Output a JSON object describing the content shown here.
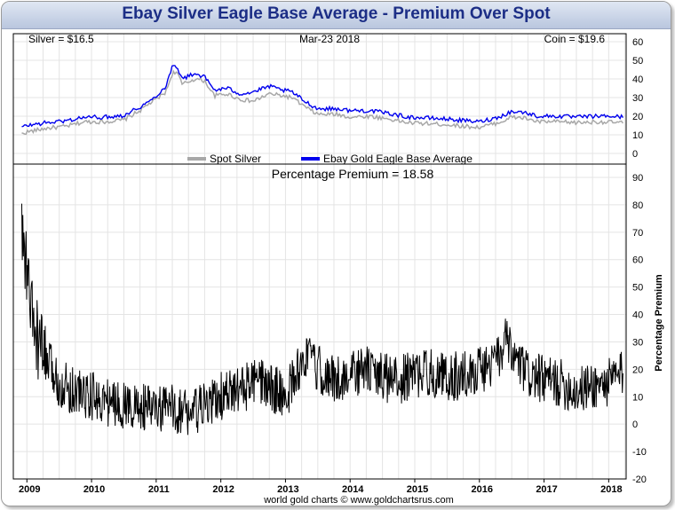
{
  "title": "Ebay Silver Eagle Base Average - Premium Over Spot",
  "footer": "world gold charts © www.goldchartsrus.com",
  "colors": {
    "title": "#1c2e86",
    "spot_silver": "#a8a8a8",
    "ebay_average": "#0000ee",
    "premium": "#000000",
    "grid": "#e4e4e4"
  },
  "chart_data": [
    {
      "type": "line",
      "header": {
        "silver": "Silver = $16.5",
        "date": "Mar-23  2018",
        "coin": "Coin = $19.6"
      },
      "legend": {
        "placement": "bottom-center",
        "items": [
          "Spot Silver",
          "Ebay Gold Eagle Base Average"
        ]
      },
      "x": [
        2008.92,
        2009.0,
        2009.3,
        2009.6,
        2009.9,
        2010.2,
        2010.5,
        2010.75,
        2010.9,
        2011.0,
        2011.15,
        2011.25,
        2011.32,
        2011.4,
        2011.6,
        2011.75,
        2011.9,
        2012.1,
        2012.3,
        2012.5,
        2012.75,
        2012.95,
        2013.1,
        2013.3,
        2013.5,
        2013.8,
        2014.0,
        2014.3,
        2014.6,
        2014.9,
        2015.2,
        2015.5,
        2015.8,
        2016.0,
        2016.3,
        2016.5,
        2016.7,
        2016.9,
        2017.2,
        2017.5,
        2017.8,
        2018.0,
        2018.22
      ],
      "series": [
        {
          "name": "Spot Silver",
          "values": [
            10.5,
            11.5,
            13.5,
            14.5,
            17,
            17,
            18,
            23,
            27,
            29,
            33,
            43,
            44,
            37,
            40,
            39,
            31,
            32,
            29,
            28,
            32,
            31,
            30,
            25,
            21,
            21,
            19.5,
            20,
            18.5,
            16.5,
            16,
            15.5,
            14.5,
            14,
            16.5,
            19.5,
            19,
            17,
            17,
            16.5,
            17,
            16.8,
            16.5
          ]
        },
        {
          "name": "Ebay Gold Eagle Base Average",
          "values": [
            14,
            15,
            16.5,
            17.5,
            19.5,
            19.5,
            20.5,
            25,
            28,
            31,
            36,
            47,
            47,
            40,
            43,
            41,
            34,
            35,
            32,
            33,
            36,
            34,
            33,
            28,
            24,
            24,
            23,
            23,
            21.5,
            19.5,
            19,
            18.5,
            17.5,
            17,
            19.5,
            22.5,
            22,
            20,
            20,
            19.5,
            20,
            20,
            19.6
          ]
        }
      ],
      "ylim": [
        0,
        60
      ],
      "yticks": [
        "0",
        "10",
        "20",
        "30",
        "40",
        "50",
        "60"
      ]
    },
    {
      "type": "line",
      "title": "Percentage Premium = 18.58",
      "ylabel": "Percentage Premium",
      "x": [
        2008.92,
        2009.0,
        2009.1,
        2009.25,
        2009.5,
        2009.75,
        2010.0,
        2010.25,
        2010.5,
        2010.75,
        2011.0,
        2011.25,
        2011.5,
        2011.75,
        2012.0,
        2012.25,
        2012.5,
        2012.75,
        2013.0,
        2013.3,
        2013.5,
        2013.75,
        2014.0,
        2014.25,
        2014.5,
        2014.75,
        2015.0,
        2015.25,
        2015.5,
        2015.75,
        2016.0,
        2016.25,
        2016.4,
        2016.5,
        2016.75,
        2017.0,
        2017.25,
        2017.5,
        2017.75,
        2018.0,
        2018.1,
        2018.22
      ],
      "series": [
        {
          "name": "Percentage Premium",
          "values": [
            70,
            55,
            35,
            25,
            15,
            12,
            10,
            8,
            7,
            6,
            5,
            6,
            4,
            6,
            10,
            12,
            15,
            14,
            10,
            25,
            20,
            16,
            18,
            20,
            17,
            16,
            18,
            19,
            17,
            18,
            20,
            22,
            30,
            25,
            18,
            16,
            15,
            12,
            14,
            15,
            17,
            18.58
          ]
        }
      ],
      "ylim": [
        -20,
        90
      ],
      "yticks": [
        "-20",
        "-10",
        "0",
        "10",
        "20",
        "30",
        "40",
        "50",
        "60",
        "70",
        "80",
        "90"
      ],
      "xticks": [
        "2009",
        "2010",
        "2011",
        "2012",
        "2013",
        "2014",
        "2015",
        "2016",
        "2017",
        "2018"
      ],
      "xtick_values": [
        2009,
        2010,
        2011,
        2012,
        2013,
        2014,
        2015,
        2016,
        2017,
        2018
      ],
      "grid": true
    }
  ]
}
